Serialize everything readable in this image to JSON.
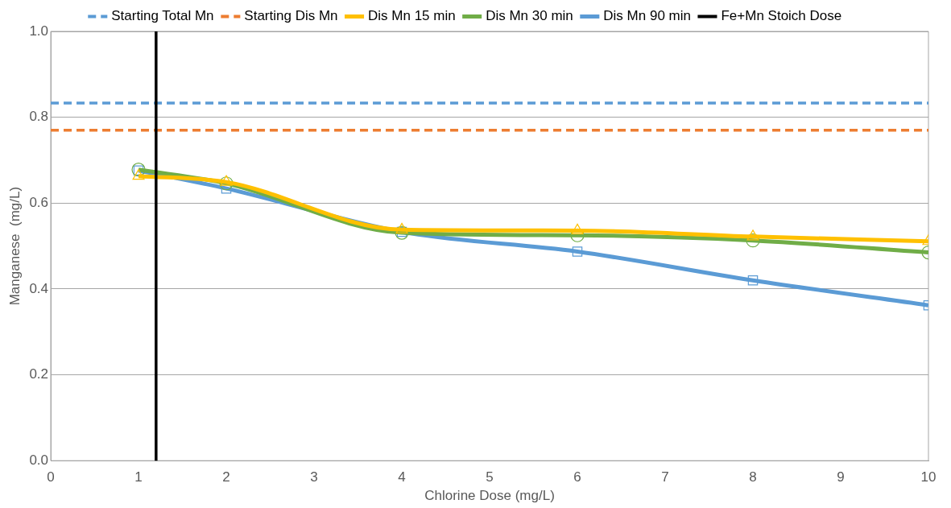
{
  "chart_data": {
    "type": "line",
    "xlabel": "Chlorine Dose (mg/L)",
    "ylabel": "Manganese  (mg/L)",
    "x": [
      1,
      2,
      4,
      6,
      8,
      10
    ],
    "series": [
      {
        "name": "Dis Mn 15 min",
        "color": "#ffc000",
        "marker": "triangle",
        "values": [
          0.663,
          0.649,
          0.538,
          0.536,
          0.522,
          0.511
        ]
      },
      {
        "name": "Dis Mn 30 min",
        "color": "#70ad47",
        "marker": "circle",
        "values": [
          0.678,
          0.646,
          0.531,
          0.525,
          0.513,
          0.485
        ]
      },
      {
        "name": "Dis Mn 90 min",
        "color": "#5b9bd5",
        "marker": "square",
        "values": [
          0.676,
          0.634,
          0.533,
          0.487,
          0.42,
          0.362
        ]
      }
    ],
    "ref_lines": [
      {
        "axis": "y",
        "value": 0.833,
        "label": "Starting Total Mn",
        "color": "#5b9bd5",
        "line_style": "dashed"
      },
      {
        "axis": "y",
        "value": 0.77,
        "label": "Starting Dis Mn",
        "color": "#ed7d31",
        "line_style": "dashed"
      },
      {
        "axis": "x",
        "value": 1.2,
        "label": "Fe+Mn Stoich Dose",
        "color": "#000000",
        "line_style": "solid"
      }
    ],
    "xlim": [
      0,
      10
    ],
    "xticks": [
      0,
      1,
      2,
      3,
      4,
      5,
      6,
      7,
      8,
      9,
      10
    ],
    "ylim": [
      0,
      1
    ],
    "yticks": [
      {
        "value": 0,
        "label": "0.0"
      },
      {
        "value": 0.2,
        "label": "0.2"
      },
      {
        "value": 0.4,
        "label": "0.4"
      },
      {
        "value": 0.6,
        "label": "0.6"
      },
      {
        "value": 0.8,
        "label": "0.8"
      },
      {
        "value": 1,
        "label": "1.0"
      }
    ],
    "grid": "y",
    "legend": "top",
    "line_style": "solid"
  }
}
